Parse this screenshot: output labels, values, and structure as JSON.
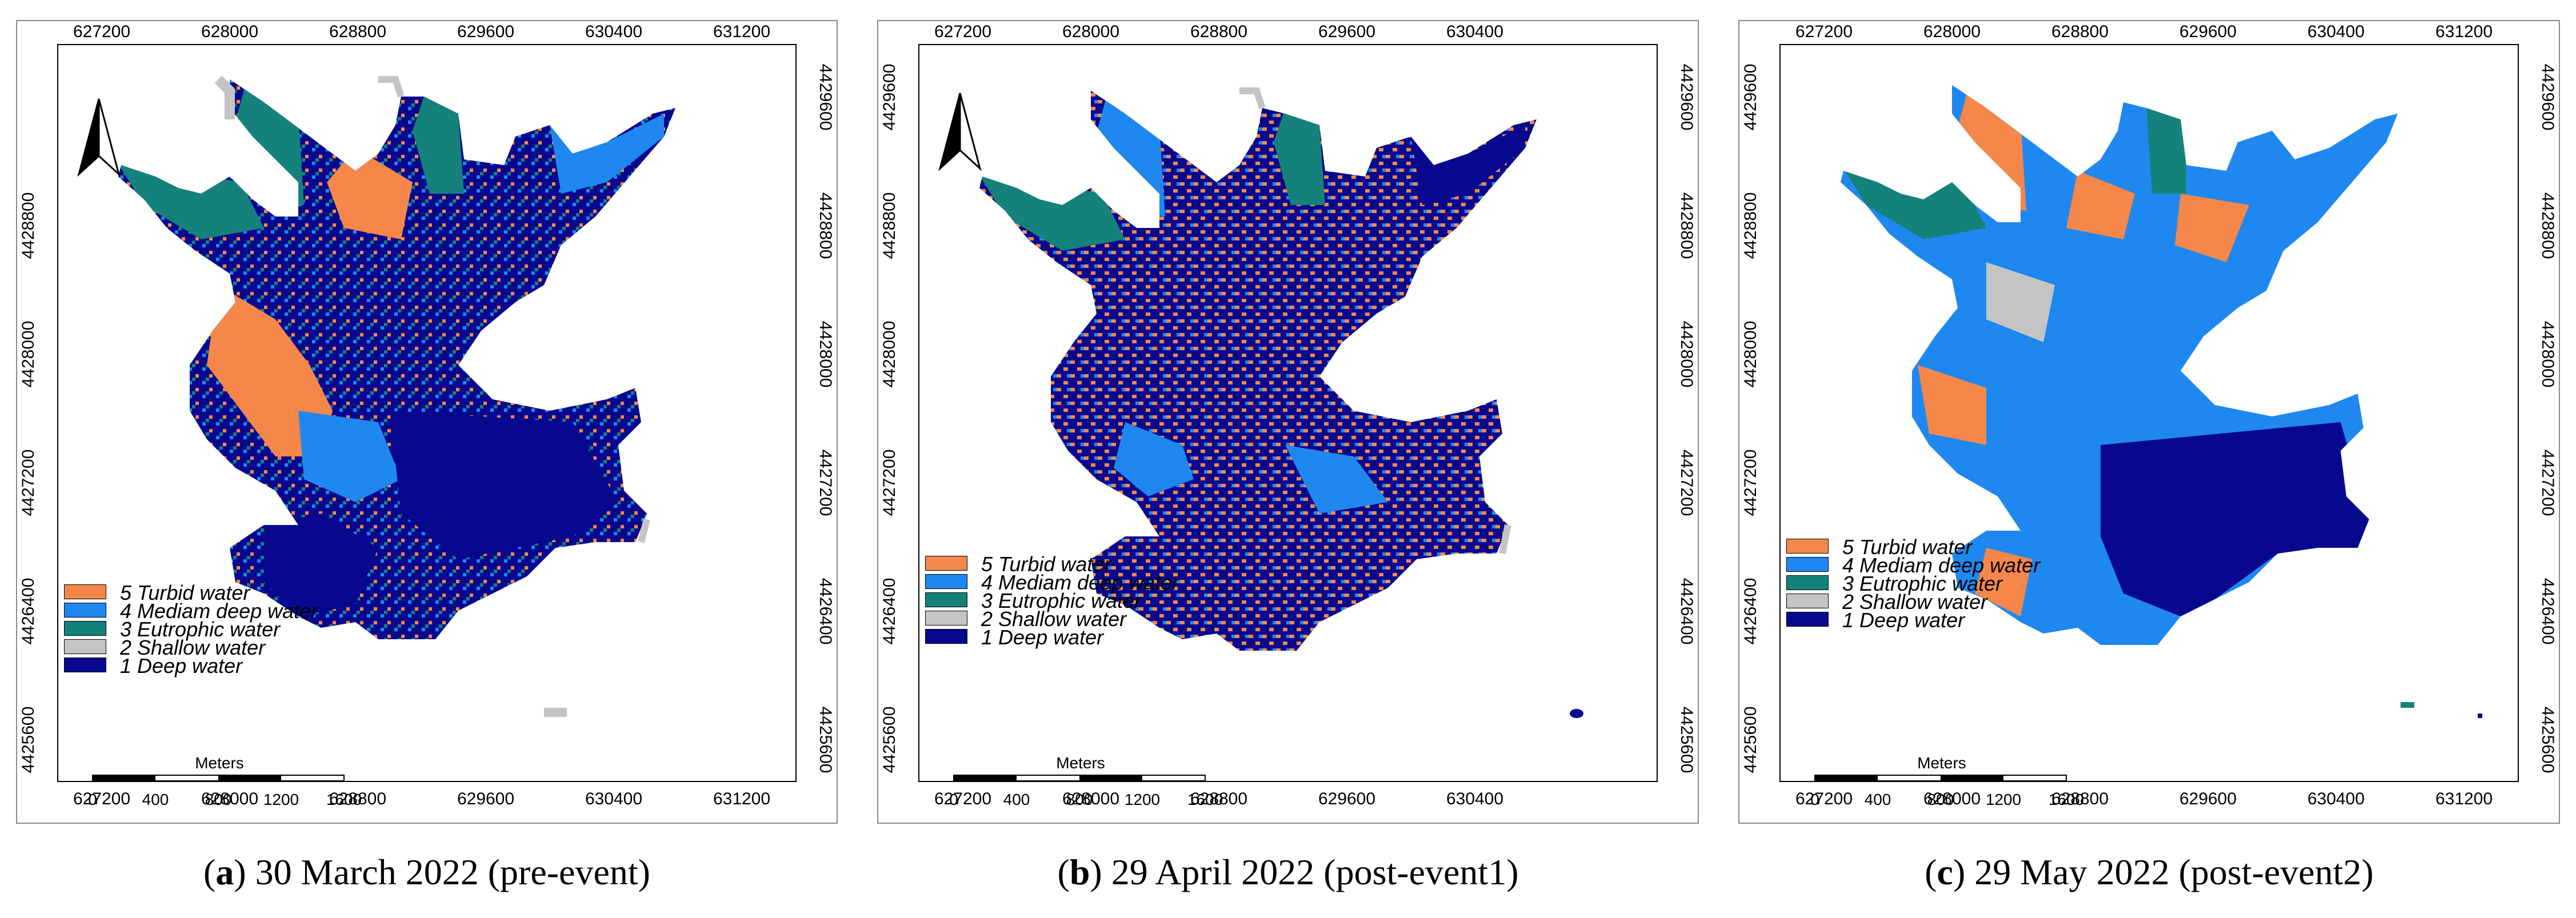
{
  "panels": [
    {
      "id": "a",
      "x_ticks": [
        "627200",
        "628000",
        "628800",
        "629600",
        "630400",
        "631200"
      ],
      "y_ticks_left": [
        "4428800",
        "4428000",
        "4427200",
        "4426400",
        "4425600"
      ],
      "y_ticks_right": [
        "4429600",
        "4428800",
        "4428000",
        "4427200",
        "4426400",
        "4425600"
      ],
      "caption_letter": "a",
      "caption_text": " 30 March 2022 (pre-event)"
    },
    {
      "id": "b",
      "x_ticks": [
        "627200",
        "628000",
        "628800",
        "629600",
        "630400"
      ],
      "y_ticks_left": [
        "4429600",
        "4428800",
        "4428000",
        "4427200",
        "4426400",
        "4425600"
      ],
      "y_ticks_right": [
        "4429600",
        "4428800",
        "4428000",
        "4427200",
        "4426400",
        "4425600"
      ],
      "caption_letter": "b",
      "caption_text": " 29 April 2022 (post-event1)"
    },
    {
      "id": "c",
      "x_ticks": [
        "627200",
        "628000",
        "628800",
        "629600",
        "630400",
        "631200"
      ],
      "y_ticks_left": [
        "4429600",
        "4428800",
        "4428000",
        "4427200",
        "4426400",
        "4425600"
      ],
      "y_ticks_right": [
        "4429600",
        "4428800",
        "4428000",
        "4427200",
        "4426400",
        "4425600"
      ],
      "caption_letter": "c",
      "caption_text": " 29 May 2022 (post-event2)"
    }
  ],
  "legend": {
    "items": [
      {
        "label": "5 Turbid water",
        "color": "#f5874a"
      },
      {
        "label": "4 Mediam deep water",
        "color": "#1e88f0"
      },
      {
        "label": "3 Eutrophic water",
        "color": "#14827a"
      },
      {
        "label": "2 Shallow water",
        "color": "#c4c4c4"
      },
      {
        "label": "1 Deep water",
        "color": "#08088f"
      }
    ]
  },
  "scalebar": {
    "title": "Meters",
    "labels": [
      "0",
      "400",
      "800",
      "1200",
      "1600"
    ]
  },
  "colors": {
    "turbid": "#f5874a",
    "medium_deep": "#1e88f0",
    "eutrophic": "#14827a",
    "shallow": "#c4c4c4",
    "deep": "#08088f"
  }
}
